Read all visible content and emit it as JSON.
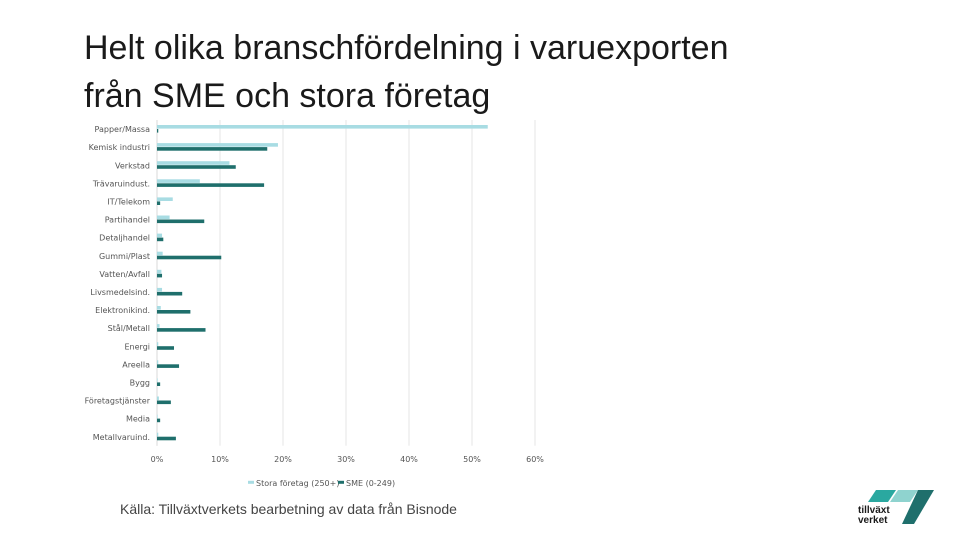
{
  "slide": {
    "title_line1": "Helt olika branschfördelning i varuexporten",
    "title_line2": "från SME och stora företag",
    "source": "Källa: Tillväxtverkets bearbetning av data från Bisnode",
    "logo_line1": "tillväxt",
    "logo_line2": "verket"
  },
  "colors": {
    "large": "#a8dce3",
    "sme": "#1f6f6c",
    "grid": "#e6e6e6",
    "logo_teal": "#2aa8a0",
    "logo_dark": "#1f6f6c"
  },
  "chart_data": {
    "type": "bar",
    "orientation": "horizontal",
    "categories": [
      "Papper/Massa",
      "Kemisk industri",
      "Verkstad",
      "Trävaruindust.",
      "IT/Telekom",
      "Partihandel",
      "Detaljhandel",
      "Gummi/Plast",
      "Vatten/Avfall",
      "Livsmedelsind.",
      "Elektronikind.",
      "Stål/Metall",
      "Energi",
      "Areella",
      "Bygg",
      "Företagstjänster",
      "Media",
      "Metallvaruind."
    ],
    "series": [
      {
        "name": "Stora företag (250+)",
        "values": [
          52.5,
          19.2,
          11.5,
          6.8,
          2.5,
          2.0,
          0.8,
          0.9,
          0.7,
          0.8,
          0.6,
          0.4,
          0.2,
          0.2,
          0.1,
          0.3,
          0.1,
          0.2
        ]
      },
      {
        "name": "SME (0-249)",
        "values": [
          0.2,
          17.5,
          12.5,
          17.0,
          0.5,
          7.5,
          1.0,
          10.2,
          0.8,
          4.0,
          5.3,
          7.7,
          2.7,
          3.5,
          0.5,
          2.2,
          0.5,
          3.0
        ]
      }
    ],
    "xticks": [
      "0%",
      "10%",
      "20%",
      "30%",
      "40%",
      "50%",
      "60%"
    ],
    "xlim": [
      0,
      60
    ],
    "grid": true,
    "legend": "bottom"
  }
}
